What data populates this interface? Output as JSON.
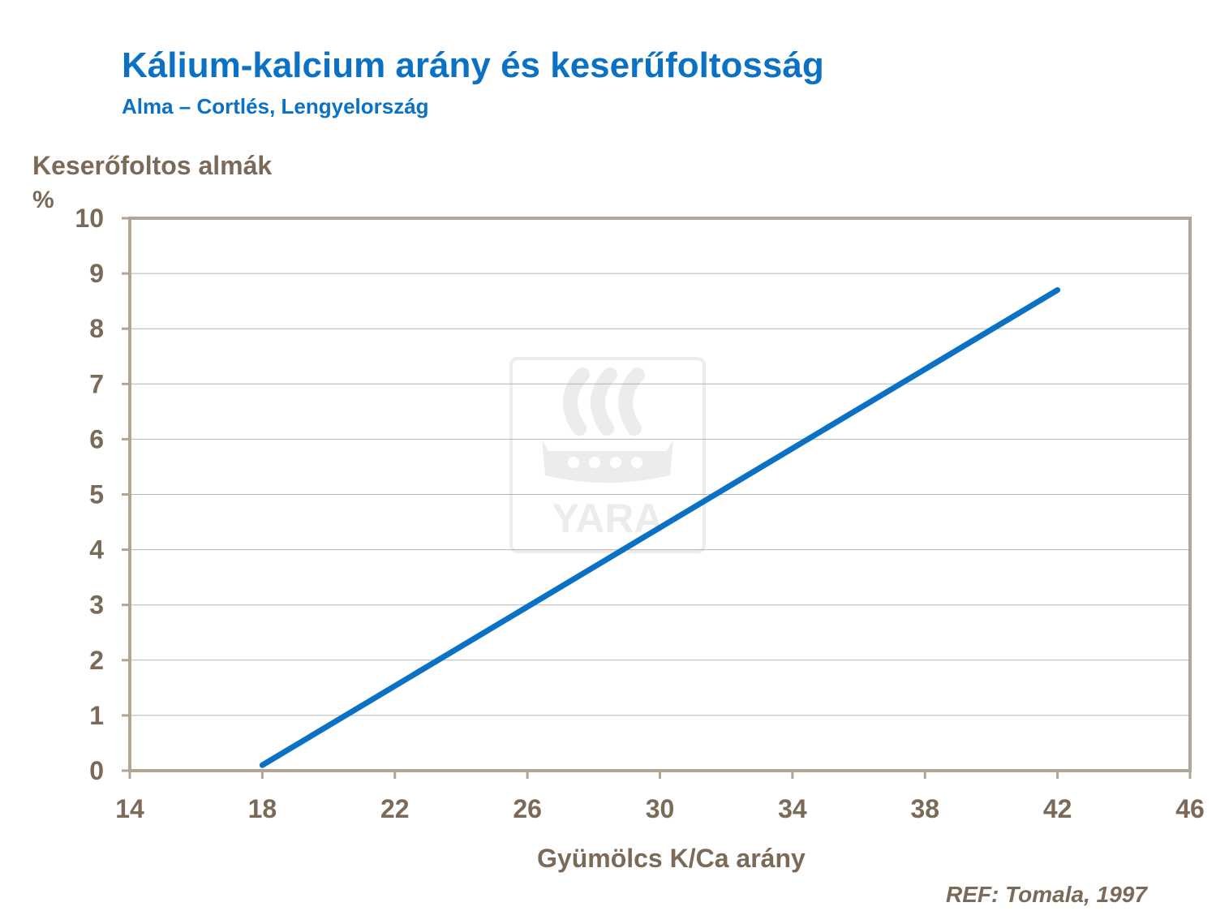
{
  "chart_data": {
    "type": "line",
    "title": "Kálium-kalcium arány és keserűfoltosság",
    "subtitle": "Alma – Cortlés, Lengyelország",
    "ylabel": "Keserőfoltos almák",
    "yunit": "%",
    "xlabel": "Gyümölcs K/Ca arány",
    "reference": "REF: Tomala, 1997",
    "xlim": [
      14,
      46
    ],
    "ylim": [
      0,
      10
    ],
    "x_ticks": [
      14,
      18,
      22,
      26,
      30,
      34,
      38,
      42,
      46
    ],
    "y_ticks": [
      0,
      1,
      2,
      3,
      4,
      5,
      6,
      7,
      8,
      9,
      10
    ],
    "grid": "horizontal",
    "series": [
      {
        "x": [
          18,
          42
        ],
        "y": [
          0.1,
          8.7
        ],
        "color": "#0a71c4"
      }
    ]
  },
  "watermark": {
    "text": "YARA",
    "icon": "yara-viking-ship-logo"
  }
}
